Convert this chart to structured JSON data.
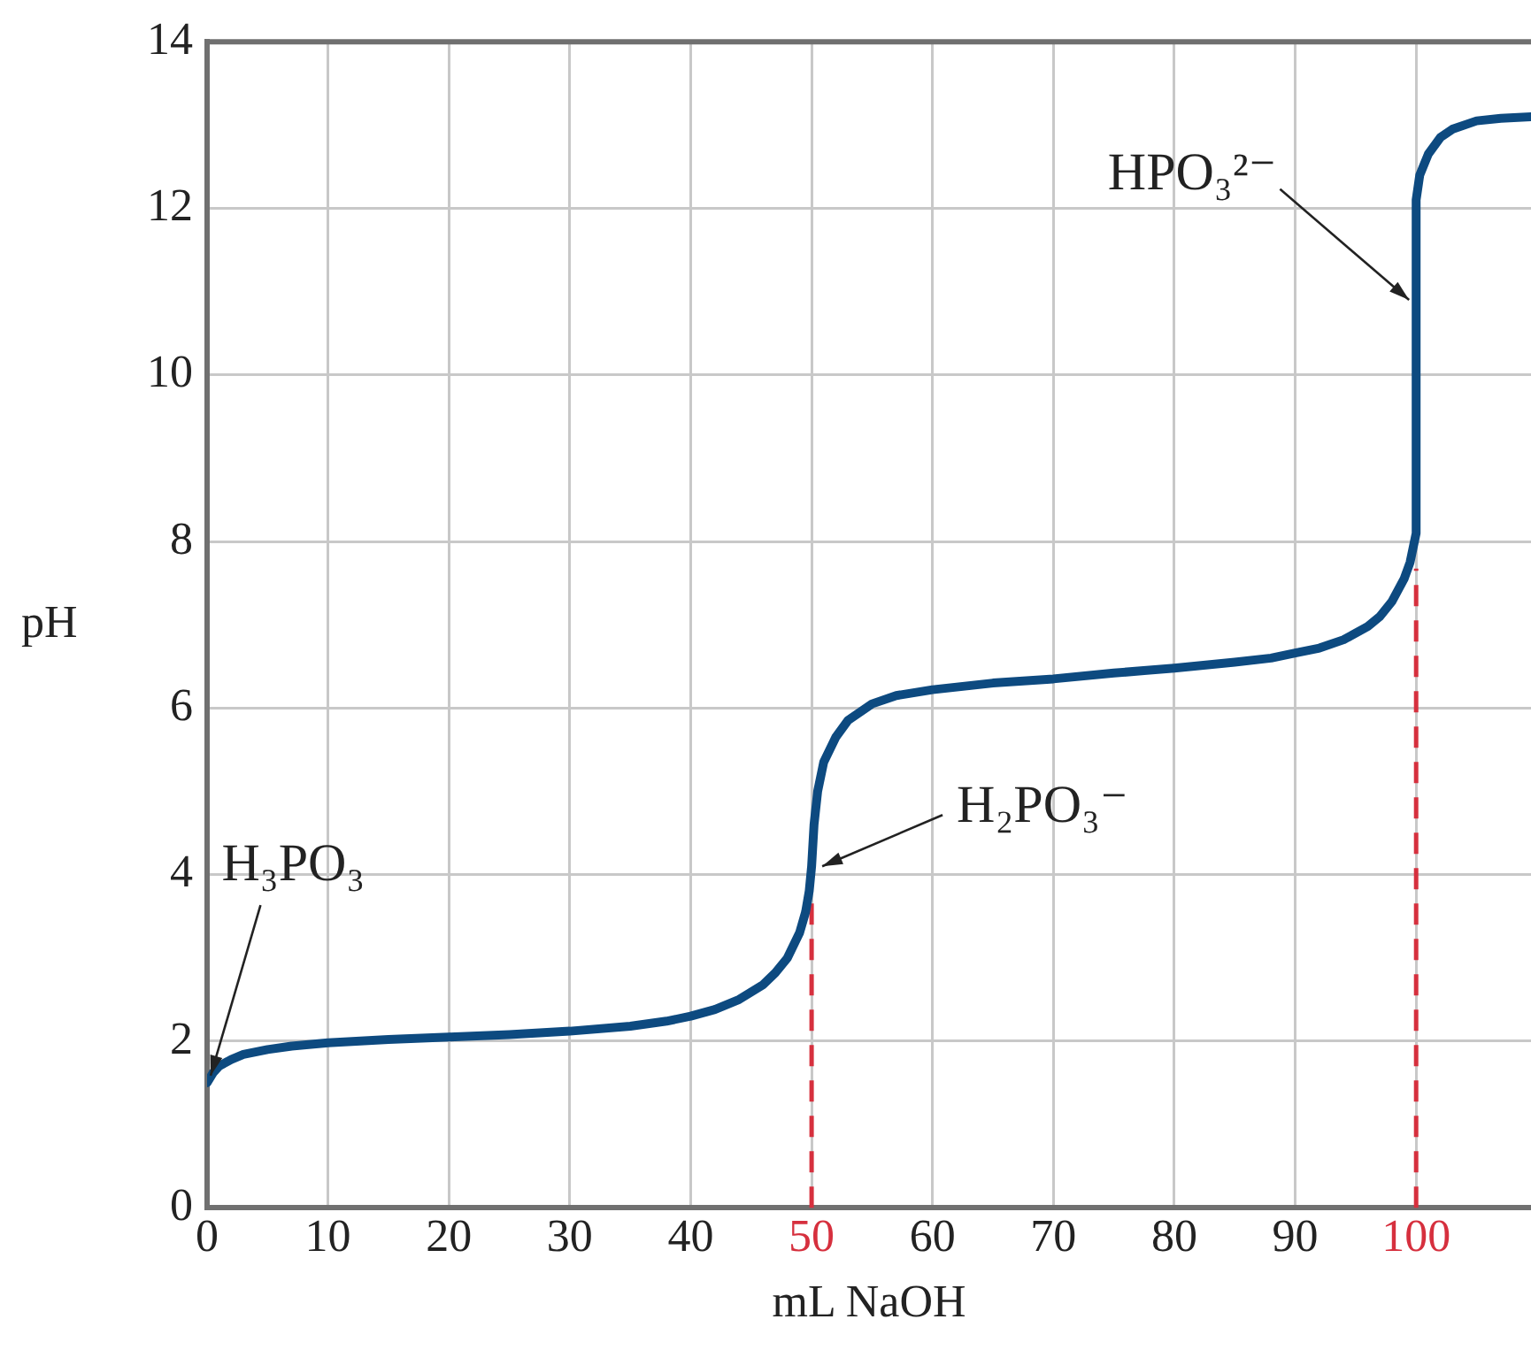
{
  "chart_data": {
    "type": "line",
    "xlabel": "mL NaOH",
    "ylabel": "pH",
    "xlim": [
      0,
      109.5
    ],
    "xticks": [
      0,
      10,
      20,
      30,
      40,
      50,
      60,
      70,
      80,
      90,
      100
    ],
    "ylim": [
      0,
      14
    ],
    "yticks": [
      0,
      2,
      4,
      6,
      8,
      10,
      12,
      14
    ],
    "grid": true,
    "legend": false,
    "marker": "none",
    "line_style": "solid",
    "series": [
      {
        "color": "#0d4a80",
        "x": [
          0,
          0.5,
          1,
          2,
          3,
          5,
          7,
          10,
          15,
          20,
          25,
          30,
          35,
          38,
          40,
          42,
          44,
          46,
          47,
          48,
          49,
          49.5,
          49.8,
          50,
          50.2,
          50.5,
          51,
          52,
          53,
          55,
          57,
          60,
          65,
          70,
          75,
          80,
          85,
          88,
          90,
          92,
          94,
          96,
          97,
          98,
          99,
          99.5,
          100,
          100,
          100.3,
          101,
          102,
          103,
          105,
          107,
          109.5
        ],
        "values": [
          1.5,
          1.62,
          1.7,
          1.78,
          1.84,
          1.9,
          1.94,
          1.98,
          2.02,
          2.05,
          2.08,
          2.12,
          2.18,
          2.24,
          2.3,
          2.38,
          2.5,
          2.68,
          2.82,
          3.0,
          3.3,
          3.55,
          3.8,
          4.1,
          4.6,
          5.0,
          5.35,
          5.65,
          5.85,
          6.05,
          6.15,
          6.22,
          6.3,
          6.35,
          6.42,
          6.48,
          6.55,
          6.6,
          6.66,
          6.72,
          6.82,
          6.98,
          7.1,
          7.28,
          7.55,
          7.75,
          8.1,
          12.1,
          12.4,
          12.65,
          12.85,
          12.95,
          13.05,
          13.08,
          13.1
        ]
      }
    ],
    "ref_lines": [
      {
        "axis": "x",
        "value": 50,
        "color": "#d6303e",
        "line_style": "dashed"
      },
      {
        "axis": "x",
        "value": 100,
        "color": "#d6303e",
        "line_style": "dashed"
      }
    ],
    "annotations": [
      {
        "text": "H₃PO₃",
        "x": 0,
        "y": 1.5
      },
      {
        "text": "H₂PO₃⁻",
        "x": 50,
        "y": 4.1
      },
      {
        "text": "HPO₃²⁻",
        "x": 100,
        "y": 10.9
      }
    ]
  }
}
